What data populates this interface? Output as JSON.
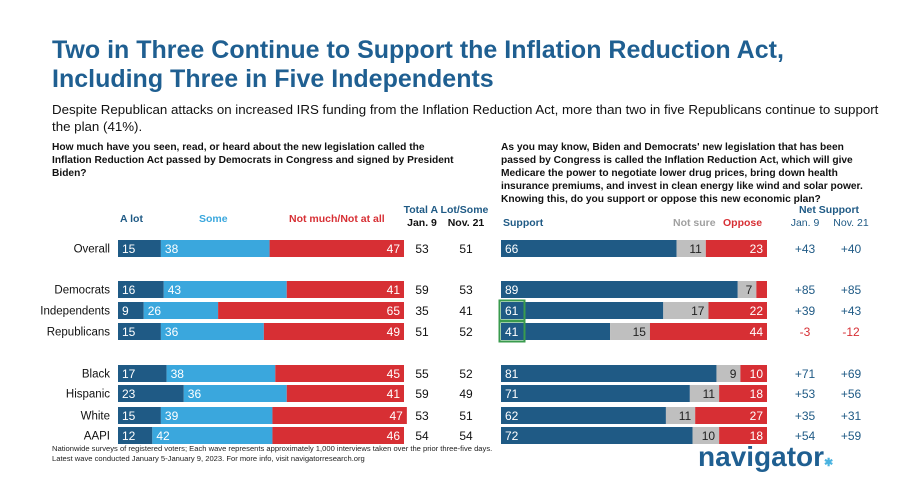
{
  "title": "Two in Three Continue to Support the Inflation Reduction Act, Including Three in Five Independents",
  "subtitle": "Despite Republican attacks on increased IRS funding from the Inflation Reduction Act, more than two in five Republicans continue to support the plan (41%).",
  "left_question": "How much have you seen, read, or heard about the new legislation called the Inflation Reduction Act passed by Democrats in Congress and signed by President Biden?",
  "right_question": "As you may know, Biden and Democrats' new legislation that has been passed by Congress is called the Inflation Reduction Act, which will give Medicare the power to negotiate lower drug prices, bring down health insurance premiums, and invest in clean energy like wind and solar power. Knowing this, do you support or oppose this new economic plan?",
  "footnote_1": "Nationwide surveys of registered voters; Each wave represents approximately 1,000 interviews taken over the prior three-five days.",
  "footnote_2": "Latest wave conducted January 5-January 9, 2023. For more info, visit navigatorresearch.org",
  "logo": "navigator",
  "headers": {
    "a_lot": "A lot",
    "some": "Some",
    "not_much": "Not much/Not at all",
    "total_title": "Total A Lot/Some",
    "jan9": "Jan. 9",
    "nov21": "Nov. 21",
    "support": "Support",
    "not_sure": "Not sure",
    "oppose": "Oppose",
    "net_title": "Net Support",
    "net_jan9": "Jan. 9",
    "net_nov21": "Nov. 21"
  },
  "colors": {
    "dark_blue": "#1f5a85",
    "light_blue": "#3aa7dd",
    "red": "#d72f34",
    "gray": "#bfbfbf",
    "title_blue": "#1f5f91",
    "highlight": "#3a9b4e"
  },
  "chart_data": [
    {
      "type": "bar",
      "orientation": "horizontal",
      "stacked": true,
      "categories": [
        "Overall",
        "Democrats",
        "Independents",
        "Republicans",
        "Black",
        "Hispanic",
        "White",
        "AAPI"
      ],
      "series": [
        {
          "name": "A lot",
          "values": [
            15,
            16,
            9,
            15,
            17,
            23,
            15,
            12
          ]
        },
        {
          "name": "Some",
          "values": [
            38,
            43,
            26,
            36,
            38,
            36,
            39,
            42
          ]
        },
        {
          "name": "Not much/Not at all",
          "values": [
            47,
            41,
            65,
            49,
            45,
            41,
            47,
            46
          ]
        }
      ],
      "total_a_lot_some": {
        "jan9": [
          "53",
          "59",
          "35",
          "51",
          "55",
          "59",
          "53",
          "54"
        ],
        "nov21": [
          "51",
          "53",
          "41",
          "52",
          "52",
          "49",
          "51",
          "54"
        ]
      }
    },
    {
      "type": "bar",
      "orientation": "horizontal",
      "stacked": true,
      "categories": [
        "Overall",
        "Democrats",
        "Independents",
        "Republicans",
        "Black",
        "Hispanic",
        "White",
        "AAPI"
      ],
      "series": [
        {
          "name": "Support",
          "values": [
            66,
            89,
            61,
            41,
            81,
            71,
            62,
            72
          ]
        },
        {
          "name": "Not sure",
          "values": [
            11,
            7,
            17,
            15,
            9,
            11,
            11,
            10
          ]
        },
        {
          "name": "Oppose",
          "values": [
            23,
            4,
            22,
            44,
            10,
            18,
            27,
            18
          ]
        }
      ],
      "hidden_labels": [
        "Oppose:1"
      ],
      "highlighted": [
        "Support:2",
        "Support:3"
      ],
      "net_support": {
        "jan9": [
          "+43",
          "+85",
          "+39",
          "-3",
          "+71",
          "+53",
          "+35",
          "+54"
        ],
        "nov21": [
          "+40",
          "+85",
          "+43",
          "-12",
          "+69",
          "+56",
          "+31",
          "+59"
        ]
      }
    }
  ]
}
